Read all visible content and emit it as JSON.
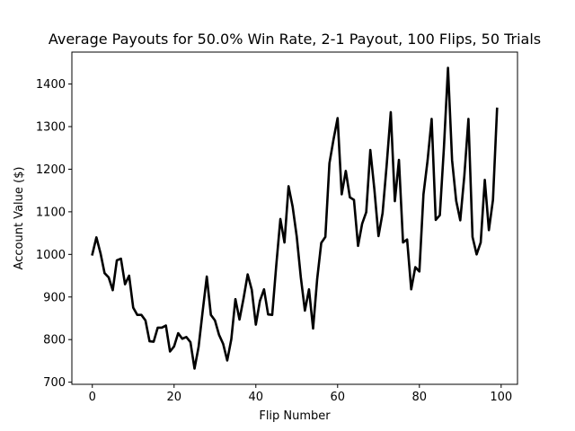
{
  "chart_data": {
    "type": "line",
    "title": "Average Payouts for 50.0% Win Rate, 2-1 Payout, 100 Flips, 50 Trials",
    "xlabel": "Flip Number",
    "ylabel": "Account Value ($)",
    "xlim": [
      -5,
      104
    ],
    "ylim": [
      695,
      1475
    ],
    "xticks": [
      0,
      20,
      40,
      60,
      80,
      100
    ],
    "yticks": [
      700,
      800,
      900,
      1000,
      1100,
      1200,
      1300,
      1400
    ],
    "grid": false,
    "series": [
      {
        "color": "#000000",
        "x": [
          0,
          1,
          2,
          3,
          4,
          5,
          6,
          7,
          8,
          9,
          10,
          11,
          12,
          13,
          14,
          15,
          16,
          17,
          18,
          19,
          20,
          21,
          22,
          23,
          24,
          25,
          26,
          27,
          28,
          29,
          30,
          31,
          32,
          33,
          34,
          35,
          36,
          37,
          38,
          39,
          40,
          41,
          42,
          43,
          44,
          45,
          46,
          47,
          48,
          49,
          50,
          51,
          52,
          53,
          54,
          55,
          56,
          57,
          58,
          59,
          60,
          61,
          62,
          63,
          64,
          65,
          66,
          67,
          68,
          69,
          70,
          71,
          72,
          73,
          74,
          75,
          76,
          77,
          78,
          79,
          80,
          81,
          82,
          83,
          84,
          85,
          86,
          87,
          88,
          89,
          90,
          91,
          92,
          93,
          94,
          95,
          96,
          97,
          98,
          99
        ],
        "y": [
          1000,
          1040,
          1003,
          956,
          946,
          916,
          986,
          990,
          930,
          950,
          875,
          858,
          858,
          845,
          796,
          795,
          828,
          828,
          833,
          772,
          784,
          815,
          802,
          806,
          794,
          732,
          783,
          867,
          948,
          858,
          845,
          811,
          790,
          751,
          801,
          895,
          847,
          897,
          953,
          917,
          835,
          891,
          918,
          859,
          858,
          975,
          1083,
          1028,
          1160,
          1112,
          1042,
          946,
          868,
          918,
          826,
          942,
          1027,
          1041,
          1214,
          1270,
          1320,
          1141,
          1196,
          1134,
          1128,
          1020,
          1072,
          1099,
          1245,
          1152,
          1043,
          1097,
          1210,
          1334,
          1125,
          1222,
          1028,
          1035,
          918,
          970,
          960,
          1141,
          1220,
          1318,
          1081,
          1092,
          1250,
          1438,
          1221,
          1126,
          1080,
          1185,
          1318,
          1041,
          1000,
          1028,
          1175,
          1057,
          1128,
          1342
        ]
      }
    ]
  }
}
